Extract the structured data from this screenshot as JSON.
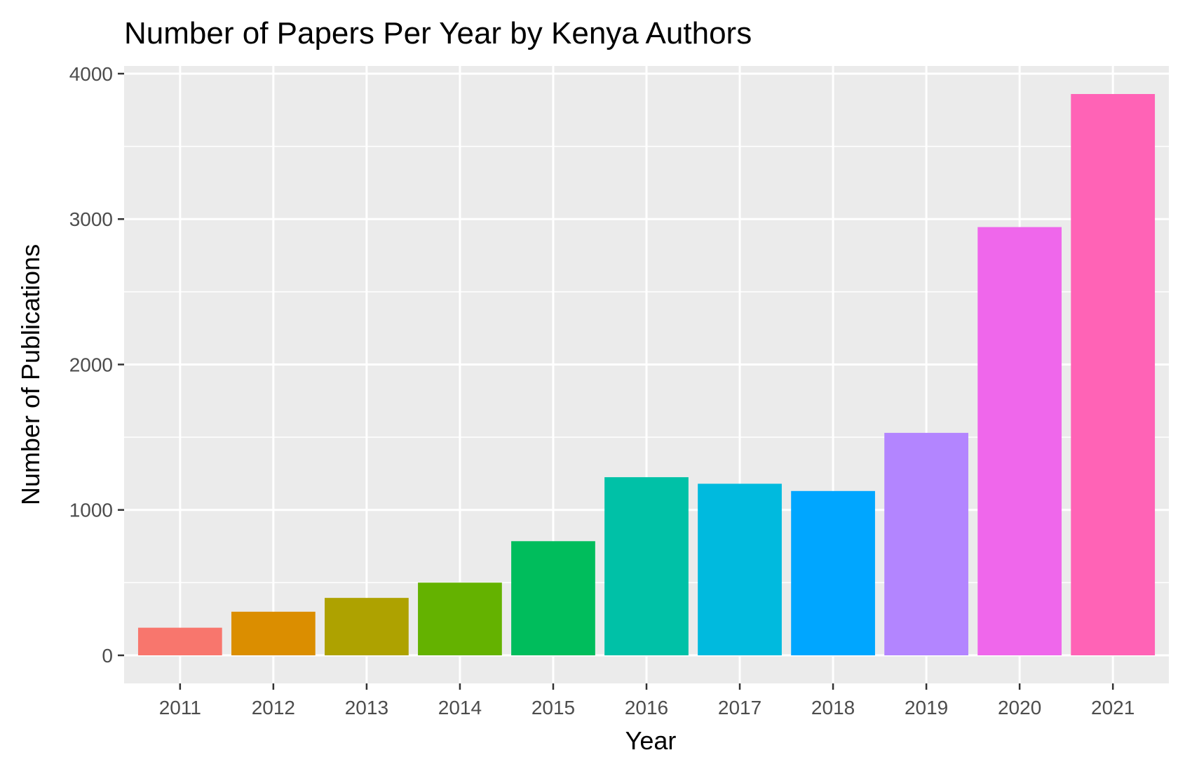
{
  "chart_data": {
    "type": "bar",
    "title": "Number of Papers Per Year by Kenya Authors",
    "xlabel": "Year",
    "ylabel": "Number of Publications",
    "categories": [
      "2011",
      "2012",
      "2013",
      "2014",
      "2015",
      "2016",
      "2017",
      "2018",
      "2019",
      "2020",
      "2021"
    ],
    "values": [
      190,
      300,
      395,
      500,
      785,
      1225,
      1180,
      1130,
      1530,
      2945,
      3860
    ],
    "colors": [
      "#F8766D",
      "#DB8E00",
      "#AEA200",
      "#64B200",
      "#00BD5C",
      "#00C1A7",
      "#00BADE",
      "#00A6FF",
      "#B385FF",
      "#EF67EB",
      "#FF63B6"
    ],
    "yticks": [
      0,
      1000,
      2000,
      3000,
      4000
    ],
    "ylim": [
      -193,
      4053
    ],
    "grid": true,
    "legend": "none",
    "panel_color": "#EBEBEB",
    "grid_color": "#FFFFFF"
  }
}
